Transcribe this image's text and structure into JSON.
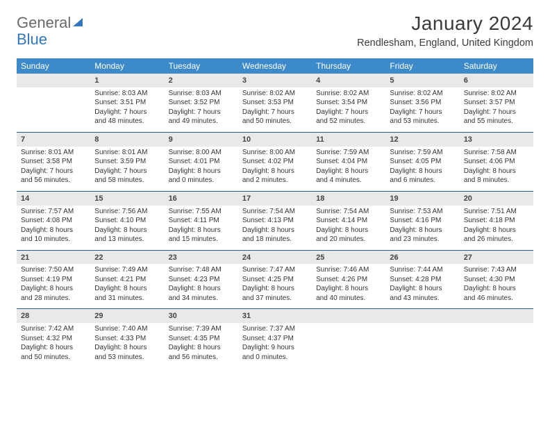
{
  "logo": {
    "word1": "General",
    "word2": "Blue"
  },
  "title": {
    "month": "January 2024",
    "location": "Rendlesham, England, United Kingdom"
  },
  "colors": {
    "header_bg": "#3c8ac9",
    "header_text": "#ffffff",
    "daynum_bg": "#e9e9e9",
    "sep_line": "#245c8e",
    "body_text": "#333333",
    "logo_gray": "#6a6a6a",
    "logo_blue": "#3176bf",
    "background": "#ffffff"
  },
  "calendar": {
    "day_labels": [
      "Sunday",
      "Monday",
      "Tuesday",
      "Wednesday",
      "Thursday",
      "Friday",
      "Saturday"
    ],
    "weeks": [
      [
        null,
        {
          "num": "1",
          "sunrise": "Sunrise: 8:03 AM",
          "sunset": "Sunset: 3:51 PM",
          "day1": "Daylight: 7 hours",
          "day2": "and 48 minutes."
        },
        {
          "num": "2",
          "sunrise": "Sunrise: 8:03 AM",
          "sunset": "Sunset: 3:52 PM",
          "day1": "Daylight: 7 hours",
          "day2": "and 49 minutes."
        },
        {
          "num": "3",
          "sunrise": "Sunrise: 8:02 AM",
          "sunset": "Sunset: 3:53 PM",
          "day1": "Daylight: 7 hours",
          "day2": "and 50 minutes."
        },
        {
          "num": "4",
          "sunrise": "Sunrise: 8:02 AM",
          "sunset": "Sunset: 3:54 PM",
          "day1": "Daylight: 7 hours",
          "day2": "and 52 minutes."
        },
        {
          "num": "5",
          "sunrise": "Sunrise: 8:02 AM",
          "sunset": "Sunset: 3:56 PM",
          "day1": "Daylight: 7 hours",
          "day2": "and 53 minutes."
        },
        {
          "num": "6",
          "sunrise": "Sunrise: 8:02 AM",
          "sunset": "Sunset: 3:57 PM",
          "day1": "Daylight: 7 hours",
          "day2": "and 55 minutes."
        }
      ],
      [
        {
          "num": "7",
          "sunrise": "Sunrise: 8:01 AM",
          "sunset": "Sunset: 3:58 PM",
          "day1": "Daylight: 7 hours",
          "day2": "and 56 minutes."
        },
        {
          "num": "8",
          "sunrise": "Sunrise: 8:01 AM",
          "sunset": "Sunset: 3:59 PM",
          "day1": "Daylight: 7 hours",
          "day2": "and 58 minutes."
        },
        {
          "num": "9",
          "sunrise": "Sunrise: 8:00 AM",
          "sunset": "Sunset: 4:01 PM",
          "day1": "Daylight: 8 hours",
          "day2": "and 0 minutes."
        },
        {
          "num": "10",
          "sunrise": "Sunrise: 8:00 AM",
          "sunset": "Sunset: 4:02 PM",
          "day1": "Daylight: 8 hours",
          "day2": "and 2 minutes."
        },
        {
          "num": "11",
          "sunrise": "Sunrise: 7:59 AM",
          "sunset": "Sunset: 4:04 PM",
          "day1": "Daylight: 8 hours",
          "day2": "and 4 minutes."
        },
        {
          "num": "12",
          "sunrise": "Sunrise: 7:59 AM",
          "sunset": "Sunset: 4:05 PM",
          "day1": "Daylight: 8 hours",
          "day2": "and 6 minutes."
        },
        {
          "num": "13",
          "sunrise": "Sunrise: 7:58 AM",
          "sunset": "Sunset: 4:06 PM",
          "day1": "Daylight: 8 hours",
          "day2": "and 8 minutes."
        }
      ],
      [
        {
          "num": "14",
          "sunrise": "Sunrise: 7:57 AM",
          "sunset": "Sunset: 4:08 PM",
          "day1": "Daylight: 8 hours",
          "day2": "and 10 minutes."
        },
        {
          "num": "15",
          "sunrise": "Sunrise: 7:56 AM",
          "sunset": "Sunset: 4:10 PM",
          "day1": "Daylight: 8 hours",
          "day2": "and 13 minutes."
        },
        {
          "num": "16",
          "sunrise": "Sunrise: 7:55 AM",
          "sunset": "Sunset: 4:11 PM",
          "day1": "Daylight: 8 hours",
          "day2": "and 15 minutes."
        },
        {
          "num": "17",
          "sunrise": "Sunrise: 7:54 AM",
          "sunset": "Sunset: 4:13 PM",
          "day1": "Daylight: 8 hours",
          "day2": "and 18 minutes."
        },
        {
          "num": "18",
          "sunrise": "Sunrise: 7:54 AM",
          "sunset": "Sunset: 4:14 PM",
          "day1": "Daylight: 8 hours",
          "day2": "and 20 minutes."
        },
        {
          "num": "19",
          "sunrise": "Sunrise: 7:53 AM",
          "sunset": "Sunset: 4:16 PM",
          "day1": "Daylight: 8 hours",
          "day2": "and 23 minutes."
        },
        {
          "num": "20",
          "sunrise": "Sunrise: 7:51 AM",
          "sunset": "Sunset: 4:18 PM",
          "day1": "Daylight: 8 hours",
          "day2": "and 26 minutes."
        }
      ],
      [
        {
          "num": "21",
          "sunrise": "Sunrise: 7:50 AM",
          "sunset": "Sunset: 4:19 PM",
          "day1": "Daylight: 8 hours",
          "day2": "and 28 minutes."
        },
        {
          "num": "22",
          "sunrise": "Sunrise: 7:49 AM",
          "sunset": "Sunset: 4:21 PM",
          "day1": "Daylight: 8 hours",
          "day2": "and 31 minutes."
        },
        {
          "num": "23",
          "sunrise": "Sunrise: 7:48 AM",
          "sunset": "Sunset: 4:23 PM",
          "day1": "Daylight: 8 hours",
          "day2": "and 34 minutes."
        },
        {
          "num": "24",
          "sunrise": "Sunrise: 7:47 AM",
          "sunset": "Sunset: 4:25 PM",
          "day1": "Daylight: 8 hours",
          "day2": "and 37 minutes."
        },
        {
          "num": "25",
          "sunrise": "Sunrise: 7:46 AM",
          "sunset": "Sunset: 4:26 PM",
          "day1": "Daylight: 8 hours",
          "day2": "and 40 minutes."
        },
        {
          "num": "26",
          "sunrise": "Sunrise: 7:44 AM",
          "sunset": "Sunset: 4:28 PM",
          "day1": "Daylight: 8 hours",
          "day2": "and 43 minutes."
        },
        {
          "num": "27",
          "sunrise": "Sunrise: 7:43 AM",
          "sunset": "Sunset: 4:30 PM",
          "day1": "Daylight: 8 hours",
          "day2": "and 46 minutes."
        }
      ],
      [
        {
          "num": "28",
          "sunrise": "Sunrise: 7:42 AM",
          "sunset": "Sunset: 4:32 PM",
          "day1": "Daylight: 8 hours",
          "day2": "and 50 minutes."
        },
        {
          "num": "29",
          "sunrise": "Sunrise: 7:40 AM",
          "sunset": "Sunset: 4:33 PM",
          "day1": "Daylight: 8 hours",
          "day2": "and 53 minutes."
        },
        {
          "num": "30",
          "sunrise": "Sunrise: 7:39 AM",
          "sunset": "Sunset: 4:35 PM",
          "day1": "Daylight: 8 hours",
          "day2": "and 56 minutes."
        },
        {
          "num": "31",
          "sunrise": "Sunrise: 7:37 AM",
          "sunset": "Sunset: 4:37 PM",
          "day1": "Daylight: 9 hours",
          "day2": "and 0 minutes."
        },
        null,
        null,
        null
      ]
    ]
  }
}
